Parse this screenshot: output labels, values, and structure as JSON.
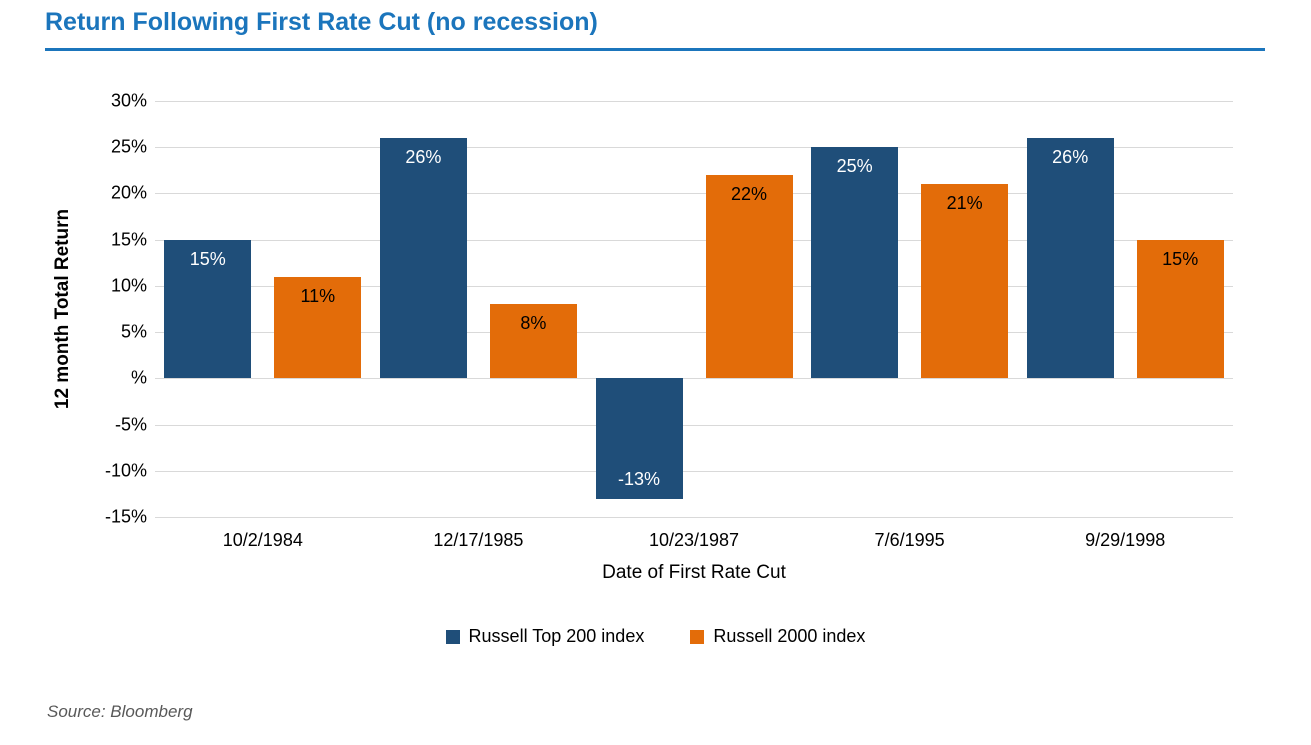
{
  "page": {
    "source": "Source: Bloomberg"
  },
  "colors": {
    "title_blue": "#1B75BC",
    "gridline": "#D9D9D9",
    "source_text": "#595959"
  },
  "chart_data": {
    "type": "bar",
    "title": "Return Following First Rate Cut (no recession)",
    "categories": [
      "10/2/1984",
      "12/17/1985",
      "10/23/1987",
      "7/6/1995",
      "9/29/1998"
    ],
    "series": [
      {
        "name": "Russell Top 200 index",
        "color": "#1F4E79",
        "label_color": "#FFFFFF",
        "values": [
          15,
          26,
          -13,
          25,
          26
        ]
      },
      {
        "name": "Russell 2000 index",
        "color": "#E36C09",
        "label_color": "#000000",
        "values": [
          11,
          8,
          22,
          21,
          15
        ]
      }
    ],
    "value_suffix": "%",
    "xlabel": "Date of First Rate Cut",
    "ylabel": "12 month Total Return",
    "ylim": [
      -15,
      30
    ],
    "ytick_step": 5,
    "ytick_labels_top_to_bottom": [
      "30%",
      "25%",
      "20%",
      "15%",
      "10%",
      "5%",
      "%",
      "-5%",
      "-10%",
      "-15%"
    ],
    "grid": true,
    "legend_position": "bottom"
  }
}
